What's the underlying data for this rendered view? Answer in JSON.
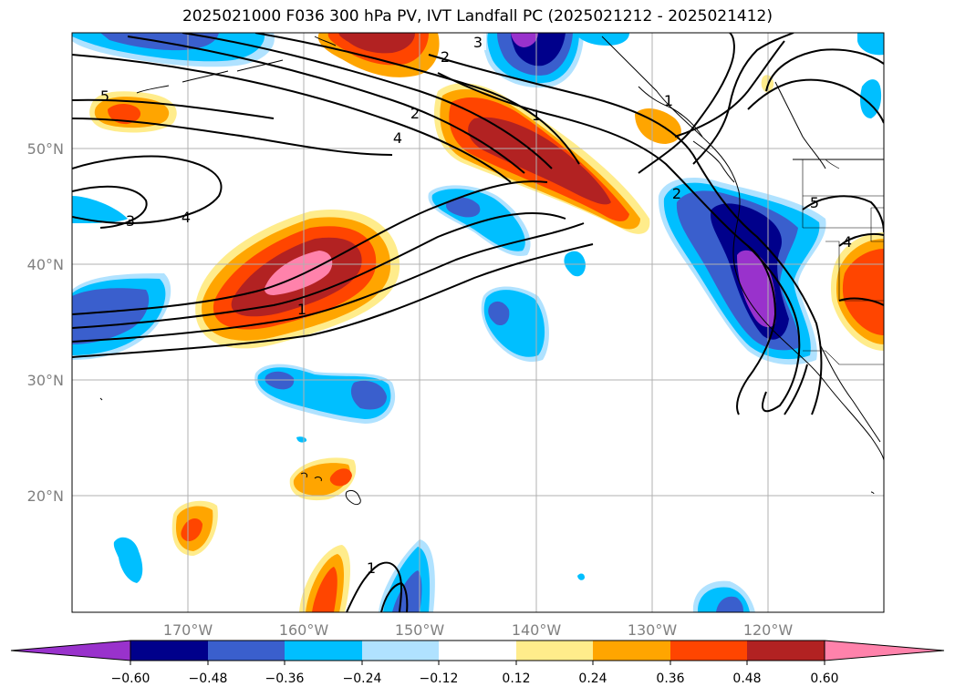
{
  "title": "2025021000 F036 300 hPa PV, IVT Landfall PC (2025021212 - 2025021412)",
  "map": {
    "lon_labels": [
      "170°W",
      "160°W",
      "150°W",
      "140°W",
      "130°W",
      "120°W"
    ],
    "lat_labels": [
      "50°N",
      "40°N",
      "30°N",
      "20°N"
    ],
    "contour_labels": [
      "3",
      "2",
      "1",
      "2",
      "4",
      "5",
      "3",
      "4",
      "1",
      "1",
      "2",
      "5",
      "4",
      "1"
    ]
  },
  "colorbar": {
    "ticks": [
      "−0.60",
      "−0.48",
      "−0.36",
      "−0.24",
      "−0.12",
      "0.12",
      "0.24",
      "0.36",
      "0.48",
      "0.60"
    ],
    "colors": [
      "#9932cc",
      "#00008b",
      "#3a5fcd",
      "#00bfff",
      "#b0e2ff",
      "#ffffff",
      "#ffec8b",
      "#ffa500",
      "#ff4500",
      "#b22222",
      "#ff82ab"
    ]
  }
}
